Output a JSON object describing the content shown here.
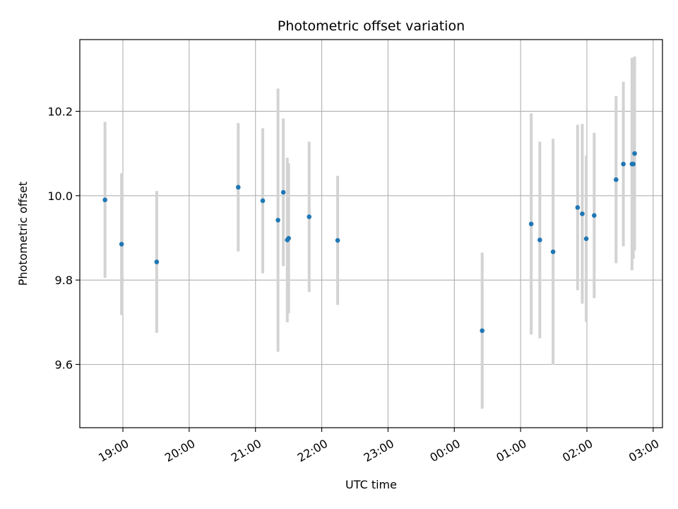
{
  "chart_data": {
    "type": "scatter",
    "title": "Photometric offset variation",
    "xlabel": "UTC time",
    "ylabel": "Photometric offset",
    "grid": true,
    "x_unit": "hours",
    "xlim": [
      18.35,
      27.14
    ],
    "ylim": [
      9.45,
      10.37
    ],
    "x_ticks": [
      {
        "value": 19,
        "label": "19:00"
      },
      {
        "value": 20,
        "label": "20:00"
      },
      {
        "value": 21,
        "label": "21:00"
      },
      {
        "value": 22,
        "label": "22:00"
      },
      {
        "value": 23,
        "label": "23:00"
      },
      {
        "value": 24,
        "label": "00:00"
      },
      {
        "value": 25,
        "label": "01:00"
      },
      {
        "value": 26,
        "label": "02:00"
      },
      {
        "value": 27,
        "label": "03:00"
      }
    ],
    "y_ticks": [
      {
        "value": 9.6,
        "label": "9.6"
      },
      {
        "value": 9.8,
        "label": "9.8"
      },
      {
        "value": 10.0,
        "label": "10.0"
      },
      {
        "value": 10.2,
        "label": "10.2"
      }
    ],
    "marker_color": "#1f77b4",
    "errorbar_color": "#d3d3d3",
    "points": [
      {
        "x": 18.73,
        "y": 9.99,
        "err": 0.185
      },
      {
        "x": 18.98,
        "y": 9.885,
        "err": 0.168
      },
      {
        "x": 19.51,
        "y": 9.843,
        "err": 0.168
      },
      {
        "x": 20.74,
        "y": 10.02,
        "err": 0.152
      },
      {
        "x": 21.11,
        "y": 9.988,
        "err": 0.172
      },
      {
        "x": 21.34,
        "y": 9.942,
        "err": 0.312
      },
      {
        "x": 21.42,
        "y": 10.008,
        "err": 0.175
      },
      {
        "x": 21.48,
        "y": 9.895,
        "err": 0.195
      },
      {
        "x": 21.5,
        "y": 9.899,
        "err": 0.178
      },
      {
        "x": 21.81,
        "y": 9.95,
        "err": 0.178
      },
      {
        "x": 22.24,
        "y": 9.894,
        "err": 0.153
      },
      {
        "x": 24.42,
        "y": 9.68,
        "err": 0.185
      },
      {
        "x": 25.16,
        "y": 9.933,
        "err": 0.262
      },
      {
        "x": 25.29,
        "y": 9.895,
        "err": 0.233
      },
      {
        "x": 25.49,
        "y": 9.867,
        "err": 0.268
      },
      {
        "x": 25.86,
        "y": 9.972,
        "err": 0.196
      },
      {
        "x": 25.93,
        "y": 9.957,
        "err": 0.213
      },
      {
        "x": 25.99,
        "y": 9.898,
        "err": 0.197
      },
      {
        "x": 26.11,
        "y": 9.953,
        "err": 0.196
      },
      {
        "x": 26.44,
        "y": 10.038,
        "err": 0.198
      },
      {
        "x": 26.55,
        "y": 10.075,
        "err": 0.195
      },
      {
        "x": 26.68,
        "y": 10.075,
        "err": 0.252
      },
      {
        "x": 26.7,
        "y": 10.075,
        "err": 0.225
      },
      {
        "x": 26.72,
        "y": 10.1,
        "err": 0.23
      }
    ]
  }
}
